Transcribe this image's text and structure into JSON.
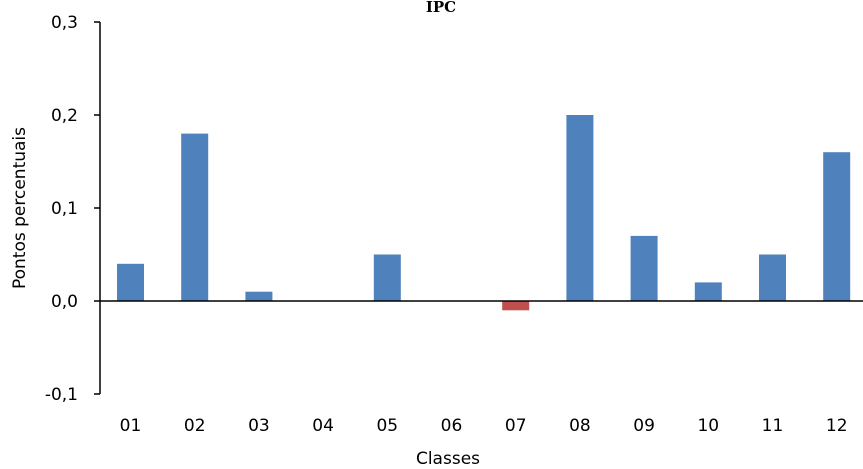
{
  "chart_data": {
    "type": "bar",
    "title": "IPC",
    "xlabel": "Classes",
    "ylabel": "Pontos percentuais",
    "categories": [
      "01",
      "02",
      "03",
      "04",
      "05",
      "06",
      "07",
      "08",
      "09",
      "10",
      "11",
      "12"
    ],
    "values": [
      0.04,
      0.18,
      0.01,
      0.0,
      0.05,
      0.0,
      -0.01,
      0.2,
      0.07,
      0.02,
      0.05,
      0.16
    ],
    "ylim": [
      -0.1,
      0.3
    ],
    "yticks": [
      "-0,1",
      "0,0",
      "0,1",
      "0,2",
      "0,3"
    ],
    "colors": {
      "positive": "#4f81bd",
      "negative": "#c0504d"
    },
    "grid": false,
    "legend": "none"
  }
}
